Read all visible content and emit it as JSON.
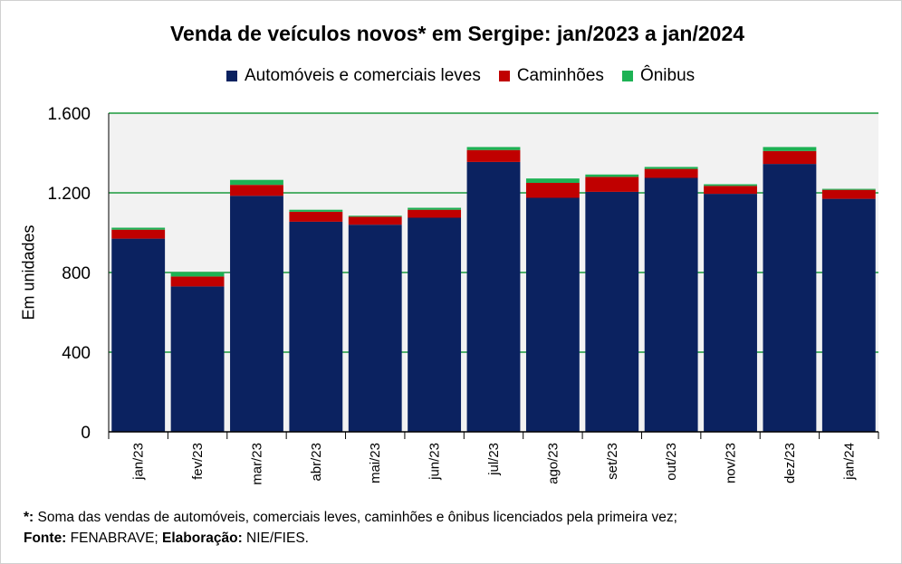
{
  "colors": {
    "automoveis": "#0b2260",
    "caminhoes": "#c00000",
    "onibus": "#1db254",
    "grid": "#1a9a3c",
    "plot_bg": "#f2f2f2"
  },
  "footnote": {
    "line1_mark": "*:",
    "line1_text": " Soma das vendas de automóveis, comerciais leves, caminhões e ônibus licenciados pela primeira vez;",
    "line2_label1": "Fonte:",
    "line2_text1": " FENABRAVE; ",
    "line2_label2": "Elaboração:",
    "line2_text2": " NIE/FIES."
  },
  "chart_data": {
    "type": "bar",
    "stacked": true,
    "title": "Venda de veículos novos* em Sergipe: jan/2023 a jan/2024",
    "xlabel": "",
    "ylabel": "Em unidades",
    "ylim": [
      0,
      1600
    ],
    "yticks": [
      0,
      400,
      800,
      1200,
      1600
    ],
    "ytick_labels": [
      "0",
      "400",
      "800",
      "1.200",
      "1.600"
    ],
    "grid": true,
    "legend_position": "top-center",
    "categories": [
      "jan/23",
      "fev/23",
      "mar/23",
      "abr/23",
      "mai/23",
      "jun/23",
      "jul/23",
      "ago/23",
      "set/23",
      "out/23",
      "nov/23",
      "dez/23",
      "jan/24"
    ],
    "series": [
      {
        "name": "Automóveis e comerciais leves",
        "color": "#0b2260",
        "values": [
          970,
          730,
          1185,
          1055,
          1040,
          1075,
          1355,
          1175,
          1205,
          1275,
          1195,
          1345,
          1170
        ]
      },
      {
        "name": "Caminhões",
        "color": "#c00000",
        "values": [
          45,
          50,
          55,
          50,
          40,
          40,
          60,
          75,
          75,
          45,
          40,
          65,
          45
        ]
      },
      {
        "name": "Ônibus",
        "color": "#1db254",
        "values": [
          10,
          20,
          25,
          10,
          5,
          10,
          15,
          22,
          12,
          10,
          8,
          20,
          5
        ]
      }
    ]
  }
}
